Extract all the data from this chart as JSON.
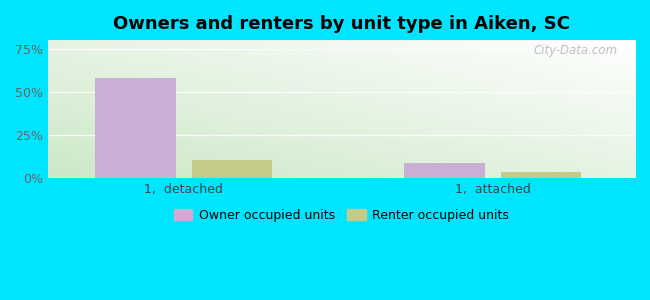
{
  "title": "Owners and renters by unit type in Aiken, SC",
  "categories": [
    "1,  detached",
    "1,  attached"
  ],
  "owner_values": [
    58.0,
    8.5
  ],
  "renter_values": [
    10.5,
    3.5
  ],
  "owner_color": "#c9aed6",
  "renter_color": "#c5c98a",
  "bar_width": 0.13,
  "yticks": [
    0,
    25,
    50,
    75
  ],
  "ytick_labels": [
    "0%",
    "25%",
    "50%",
    "75%"
  ],
  "ylim": [
    0,
    80
  ],
  "background_outer": "#00e5ff",
  "legend_labels": [
    "Owner occupied units",
    "Renter occupied units"
  ],
  "watermark": "City-Data.com",
  "title_fontsize": 13,
  "tick_fontsize": 9,
  "legend_fontsize": 9,
  "group_centers": [
    0.22,
    0.72
  ],
  "xlim": [
    0.0,
    0.95
  ]
}
